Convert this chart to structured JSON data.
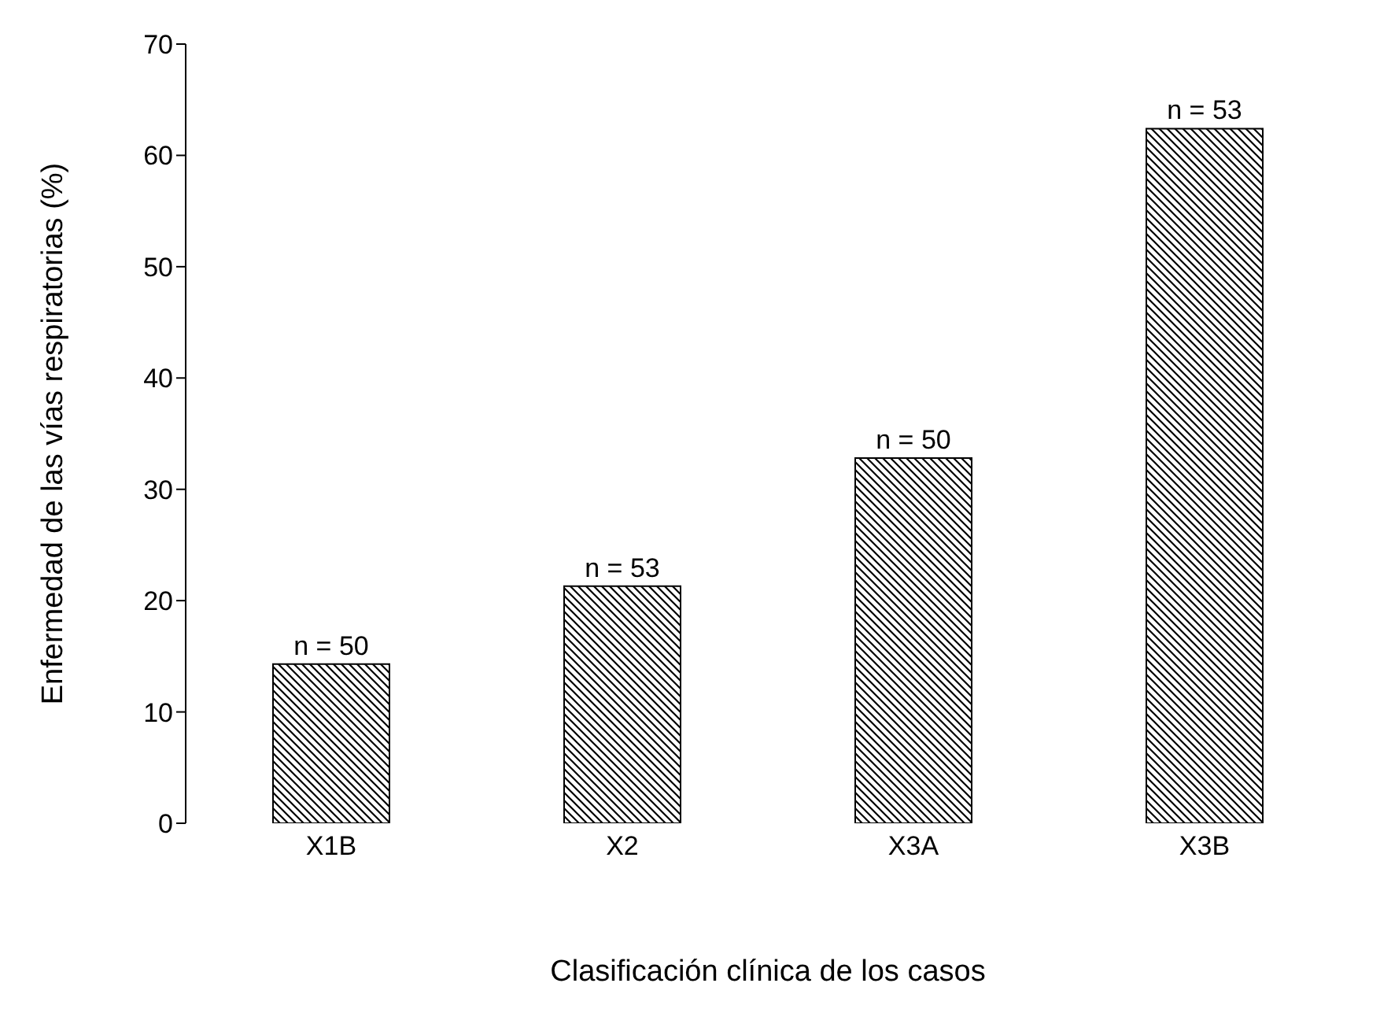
{
  "chart_data": {
    "type": "bar",
    "xlabel": "Clasificación clínica de los casos",
    "ylabel": "Enfermedad de las vías respiratorias (%)",
    "categories": [
      "X1B",
      "X2",
      "X3A",
      "X3B"
    ],
    "values": [
      14.3,
      21.3,
      32.8,
      62.4
    ],
    "color": "#000000",
    "ylim": [
      0,
      70
    ],
    "yticks": [
      0,
      10,
      20,
      30,
      40,
      50,
      60,
      70
    ],
    "grid": false,
    "legend": false,
    "annotations": [
      {
        "text": "n = 50",
        "x": "X1B",
        "y": 14.3
      },
      {
        "text": "n = 53",
        "x": "X2",
        "y": 21.3
      },
      {
        "text": "n = 50",
        "x": "X3A",
        "y": 32.8
      },
      {
        "text": "n = 53",
        "x": "X3B",
        "y": 62.4
      }
    ]
  }
}
